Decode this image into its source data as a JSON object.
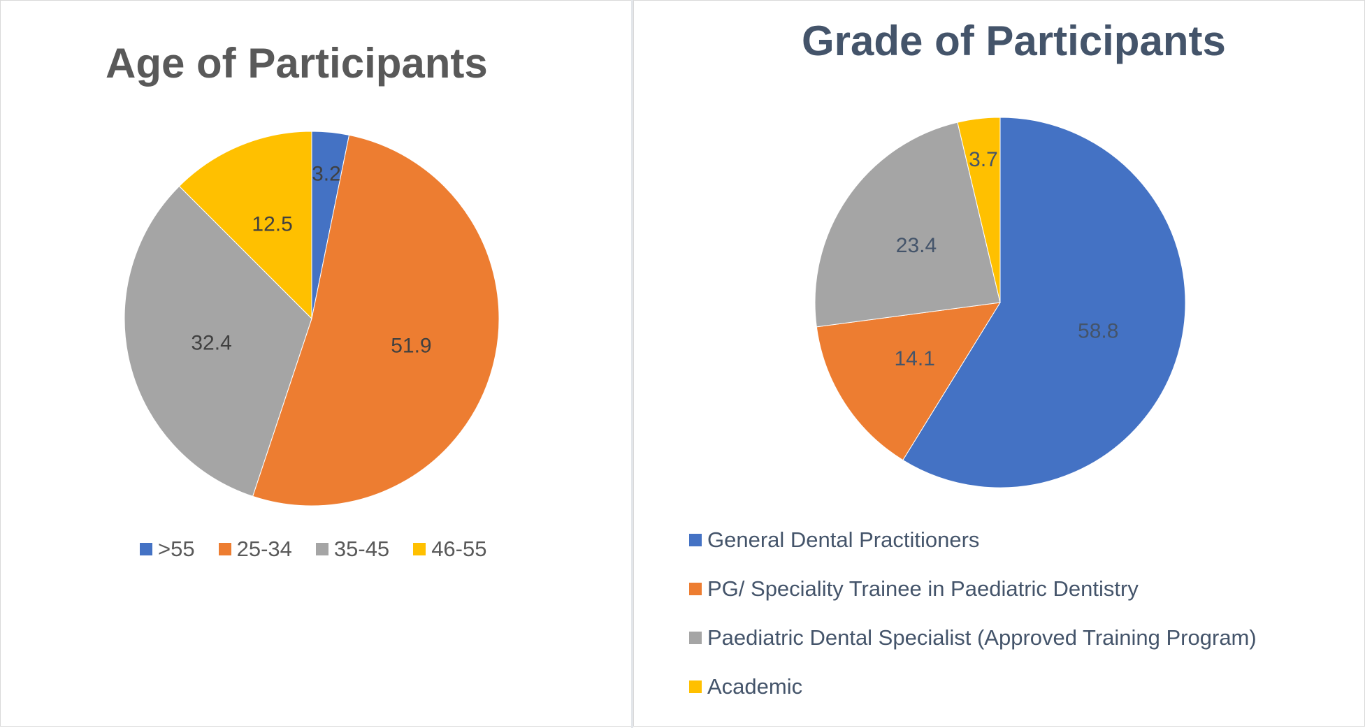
{
  "colors": {
    "blue": "#4472c4",
    "orange": "#ed7d31",
    "gray": "#a5a5a5",
    "yellow": "#ffc000",
    "title_left": "#595959",
    "title_right": "#44546a"
  },
  "chart_data": [
    {
      "type": "pie",
      "title": "Age of Participants",
      "legend_position": "bottom",
      "slices": [
        {
          "label": ">55",
          "value": 3.2,
          "color": "#4472c4"
        },
        {
          "label": "25-34",
          "value": 51.9,
          "color": "#ed7d31"
        },
        {
          "label": "35-45",
          "value": 32.4,
          "color": "#a5a5a5"
        },
        {
          "label": "46-55",
          "value": 12.5,
          "color": "#ffc000"
        }
      ]
    },
    {
      "type": "pie",
      "title": "Grade of Participants",
      "legend_position": "bottom",
      "slices": [
        {
          "label": "General Dental Practitioners",
          "value": 58.8,
          "color": "#4472c4"
        },
        {
          "label": "PG/ Speciality Trainee in Paediatric Dentistry",
          "value": 14.1,
          "color": "#ed7d31"
        },
        {
          "label": "Paediatric Dental Specialist (Approved Training Program)",
          "value": 23.4,
          "color": "#a5a5a5"
        },
        {
          "label": "Academic",
          "value": 3.7,
          "color": "#ffc000"
        }
      ]
    }
  ]
}
